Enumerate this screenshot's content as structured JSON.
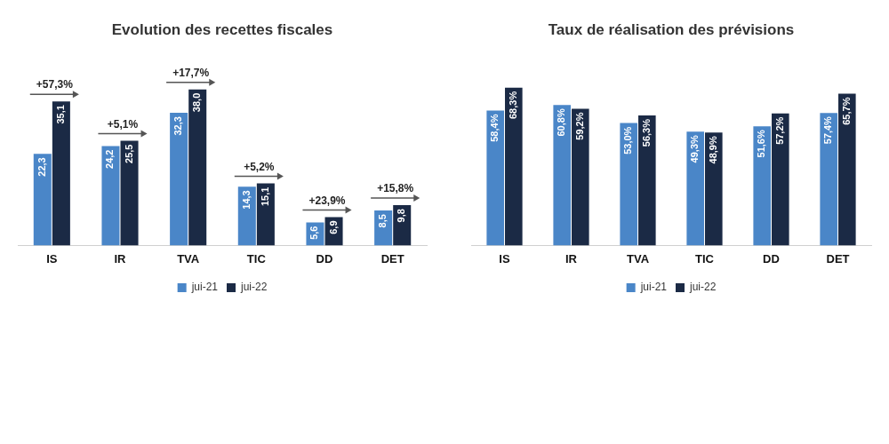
{
  "chart_data": [
    {
      "type": "bar",
      "title": "Evolution des recettes fiscales",
      "categories": [
        "IS",
        "IR",
        "TVA",
        "TIC",
        "DD",
        "DET"
      ],
      "series": [
        {
          "name": "jui-21",
          "color": "#4a86c8",
          "values": [
            22.3,
            24.2,
            32.3,
            14.3,
            5.6,
            8.5
          ],
          "value_labels": [
            "22,3",
            "24,2",
            "32,3",
            "14,3",
            "5,6",
            "8,5"
          ]
        },
        {
          "name": "jui-22",
          "color": "#1b2a45",
          "values": [
            35.1,
            25.5,
            38.0,
            15.1,
            6.9,
            9.8
          ],
          "value_labels": [
            "35,1",
            "25,5",
            "38,0",
            "15,1",
            "6,9",
            "9,8"
          ]
        }
      ],
      "annotations": [
        {
          "category": "IS",
          "text": "+57,3%"
        },
        {
          "category": "IR",
          "text": "+5,1%"
        },
        {
          "category": "TVA",
          "text": "+17,7%"
        },
        {
          "category": "TIC",
          "text": "+5,2%"
        },
        {
          "category": "DD",
          "text": "+23,9%"
        },
        {
          "category": "DET",
          "text": "+15,8%"
        }
      ],
      "data_labels": true,
      "tick_labels": "x",
      "grid": false,
      "legend": "bottom"
    },
    {
      "type": "bar",
      "title": "Taux de réalisation des prévisions",
      "categories": [
        "IS",
        "IR",
        "TVA",
        "TIC",
        "DD",
        "DET"
      ],
      "series": [
        {
          "name": "jui-21",
          "color": "#4a86c8",
          "values": [
            58.4,
            60.8,
            53.0,
            49.3,
            51.6,
            57.4
          ],
          "value_labels": [
            "58,4%",
            "60,8%",
            "53,0%",
            "49,3%",
            "51,6%",
            "57,4%"
          ]
        },
        {
          "name": "jui-22",
          "color": "#1b2a45",
          "values": [
            68.3,
            59.2,
            56.3,
            48.9,
            57.2,
            65.7
          ],
          "value_labels": [
            "68,3%",
            "59,2%",
            "56,3%",
            "48,9%",
            "57,2%",
            "65,7%"
          ]
        }
      ],
      "data_labels": true,
      "tick_labels": "x",
      "grid": false,
      "legend": "bottom"
    }
  ]
}
